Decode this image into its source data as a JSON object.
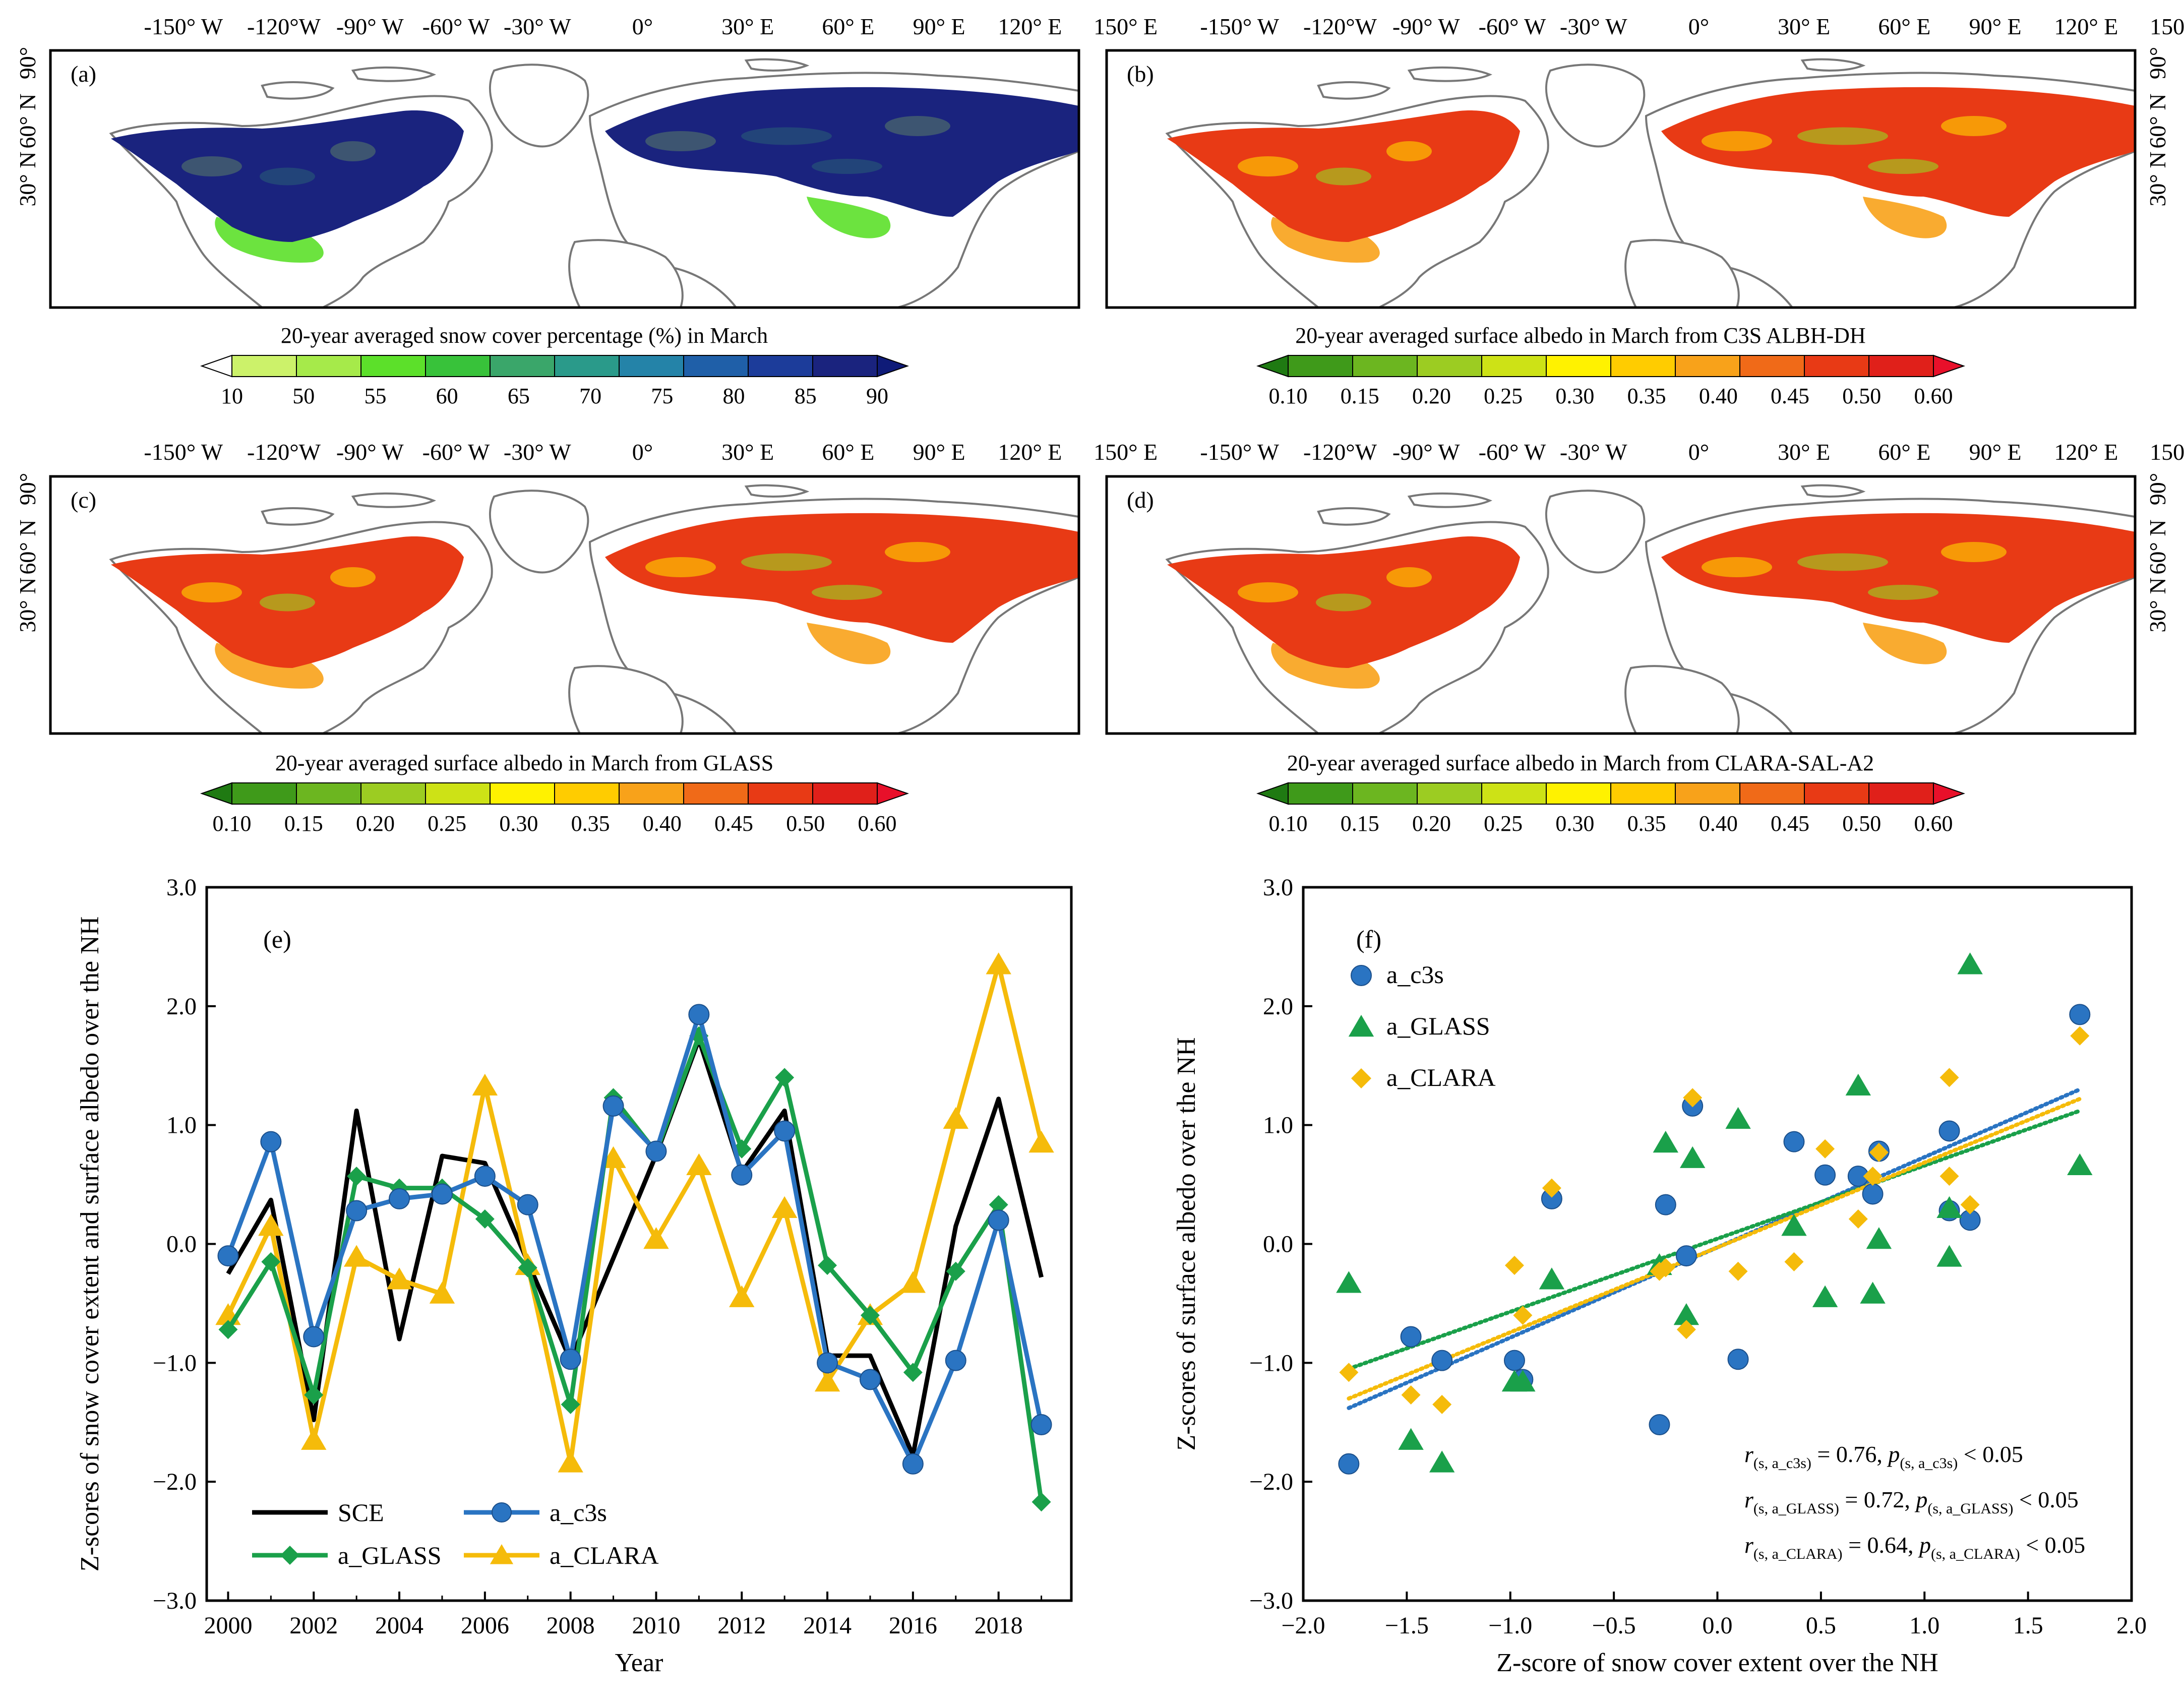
{
  "map_panels": [
    {
      "id": "a",
      "label": "(a)",
      "caption": "20-year averaged snow cover  percentage (%) in March",
      "scale": "snow",
      "ticks": [
        "10",
        "50",
        "55",
        "60",
        "65",
        "70",
        "75",
        "80",
        "85",
        "90"
      ]
    },
    {
      "id": "b",
      "label": "(b)",
      "caption": "20-year averaged surface albedo in March from C3S ALBH-DH",
      "scale": "albedo",
      "ticks": [
        "0.10",
        "0.15",
        "0.20",
        "0.25",
        "0.30",
        "0.35",
        "0.40",
        "0.45",
        "0.50",
        "0.60"
      ]
    },
    {
      "id": "c",
      "label": "(c)",
      "caption": "20-year averaged surface albedo in March from GLASS",
      "scale": "albedo",
      "ticks": [
        "0.10",
        "0.15",
        "0.20",
        "0.25",
        "0.30",
        "0.35",
        "0.40",
        "0.45",
        "0.50",
        "0.60"
      ]
    },
    {
      "id": "d",
      "label": "(d)",
      "caption": "20-year averaged surface albedo in March from CLARA-SAL-A2",
      "scale": "albedo",
      "ticks": [
        "0.10",
        "0.15",
        "0.20",
        "0.25",
        "0.30",
        "0.35",
        "0.40",
        "0.45",
        "0.50",
        "0.60"
      ]
    }
  ],
  "map_axes": {
    "lon_labels": [
      "-150° W",
      "-120°W",
      "-90° W",
      "-60° W",
      "-30° W",
      "0°",
      "30° E",
      "60° E",
      "90° E",
      "120° E",
      "150° E"
    ],
    "lat_labels": [
      "90°",
      "60° N",
      "30° N"
    ]
  },
  "colors": {
    "snow": [
      "#ffffff",
      "#ccf26a",
      "#a6ea4a",
      "#5ce02a",
      "#38c23a",
      "#3aa66a",
      "#2a9a8a",
      "#2483a8",
      "#1f5fa8",
      "#1c3c9a",
      "#1a237e",
      "#0f1b78"
    ],
    "albedo": [
      "#1f7a12",
      "#3f9a1a",
      "#6cb620",
      "#9ccc22",
      "#cde216",
      "#fff200",
      "#ffcc00",
      "#f8a21a",
      "#f06a18",
      "#e83a15",
      "#e0201a",
      "#e8102a"
    ],
    "land_outline": "#777777",
    "sce": "#000000",
    "c3s": "#2a74c2",
    "glass": "#1aa04a",
    "clara": "#f5bb0a"
  },
  "chart_data": [
    {
      "panel": "(e)",
      "type": "line",
      "x": [
        2000,
        2001,
        2002,
        2003,
        2004,
        2005,
        2006,
        2007,
        2008,
        2009,
        2010,
        2011,
        2012,
        2013,
        2014,
        2015,
        2016,
        2017,
        2018,
        2019
      ],
      "series": [
        {
          "name": "SCE",
          "marker": "none",
          "values": [
            -0.25,
            0.37,
            -1.48,
            1.12,
            -0.8,
            0.74,
            0.68,
            -0.15,
            -0.98,
            -0.12,
            0.75,
            1.72,
            0.6,
            1.12,
            -0.94,
            -0.94,
            -1.78,
            0.15,
            1.22,
            -0.28
          ]
        },
        {
          "name": "a_c3s",
          "marker": "circle",
          "values": [
            -0.1,
            0.86,
            -0.78,
            0.28,
            0.38,
            0.42,
            0.57,
            0.33,
            -0.97,
            1.16,
            0.78,
            1.93,
            0.58,
            0.95,
            -1.0,
            -1.14,
            -1.85,
            -0.98,
            0.2,
            -1.52
          ]
        },
        {
          "name": "a_GLASS",
          "marker": "diamond",
          "values": [
            -0.72,
            -0.15,
            -1.27,
            0.57,
            0.47,
            0.47,
            0.21,
            -0.2,
            -1.35,
            1.23,
            0.77,
            1.75,
            0.8,
            1.4,
            -0.18,
            -0.6,
            -1.08,
            -0.23,
            0.33,
            -2.17
          ]
        },
        {
          "name": "a_CLARA",
          "marker": "triangle",
          "values": [
            -0.6,
            0.15,
            -1.65,
            -0.11,
            -0.3,
            -0.42,
            1.33,
            -0.18,
            -1.84,
            0.72,
            0.04,
            0.66,
            -0.45,
            0.3,
            -1.16,
            -0.6,
            -0.33,
            1.05,
            2.35,
            0.85
          ]
        }
      ],
      "xlabel": "Year",
      "ylabel": "Z-scores of snow cover extent and surface albedo over the NH",
      "xlim": [
        1999.5,
        2019.7
      ],
      "ylim": [
        -3.0,
        3.0
      ],
      "xticks": [
        "2000",
        "2002",
        "2004",
        "2006",
        "2008",
        "2010",
        "2012",
        "2014",
        "2016",
        "2018"
      ],
      "yticks": [
        "3.0",
        "2.0",
        "1.0",
        "0.0",
        "−1.0",
        "−2.0",
        "−3.0"
      ],
      "legend": [
        "SCE",
        "a_c3s",
        "a_GLASS",
        "a_CLARA"
      ],
      "legend_position": "bottom-left"
    },
    {
      "panel": "(f)",
      "type": "scatter",
      "x_values": [
        -1.78,
        -1.48,
        -1.33,
        -0.98,
        -0.94,
        -0.8,
        -0.28,
        -0.25,
        -0.15,
        -0.12,
        0.1,
        0.37,
        0.52,
        0.68,
        0.75,
        0.78,
        1.12,
        1.12,
        1.22,
        1.75
      ],
      "series": [
        {
          "name": "a_c3s",
          "marker": "circle",
          "values": [
            -1.85,
            -0.78,
            -0.98,
            -0.98,
            -1.14,
            0.38,
            -1.52,
            0.33,
            -0.1,
            1.16,
            -0.97,
            0.86,
            0.58,
            0.57,
            0.42,
            0.78,
            0.95,
            0.28,
            0.2,
            1.93
          ]
        },
        {
          "name": "a_GLASS",
          "marker": "triangle",
          "values": [
            -0.33,
            -1.65,
            -1.84,
            -1.16,
            -1.16,
            -0.3,
            -0.18,
            0.85,
            -0.6,
            0.72,
            1.05,
            0.15,
            -0.45,
            1.33,
            -0.42,
            0.04,
            -0.11,
            0.3,
            2.35,
            0.66
          ]
        },
        {
          "name": "a_CLARA",
          "marker": "diamond",
          "values": [
            -1.08,
            -1.27,
            -1.35,
            -0.18,
            -0.6,
            0.47,
            -0.23,
            -0.2,
            -0.72,
            1.23,
            -0.23,
            -0.15,
            0.8,
            0.21,
            0.57,
            0.77,
            1.4,
            0.57,
            0.33,
            1.75
          ]
        }
      ],
      "trend_lines": [
        {
          "name": "a_c3s",
          "x": [
            -1.78,
            1.75
          ],
          "y": [
            -1.38,
            1.3
          ]
        },
        {
          "name": "a_GLASS",
          "x": [
            -1.78,
            1.75
          ],
          "y": [
            -1.05,
            1.12
          ]
        },
        {
          "name": "a_CLARA",
          "x": [
            -1.78,
            1.75
          ],
          "y": [
            -1.3,
            1.22
          ]
        }
      ],
      "xlabel": "Z-score of snow cover extent over the NH",
      "ylabel": "Z-scores of surface albedo over the NH",
      "xlim": [
        -2.0,
        2.0
      ],
      "ylim": [
        -3.0,
        3.0
      ],
      "xticks": [
        "−2.0",
        "−1.5",
        "−1.0",
        "−0.5",
        "0.0",
        "0.5",
        "1.0",
        "1.5",
        "2.0"
      ],
      "yticks": [
        "3.0",
        "2.0",
        "1.0",
        "0.0",
        "−1.0",
        "−2.0",
        "−3.0"
      ],
      "legend": [
        "a_c3s",
        "a_GLASS",
        "a_CLARA"
      ],
      "legend_position": "top-left",
      "stats": [
        {
          "r_sub": "(s, a_c3s)",
          "r": " = 0.76, ",
          "p_sub": "(s, a_c3s)",
          "p": " < 0.05"
        },
        {
          "r_sub": "(s, a_GLASS)",
          "r": " = 0.72, ",
          "p_sub": "(s, a_GLASS)",
          "p": " < 0.05"
        },
        {
          "r_sub": "(s, a_CLARA)",
          "r": " = 0.64, ",
          "p_sub": "(s, a_CLARA)",
          "p": " < 0.05"
        }
      ]
    }
  ]
}
